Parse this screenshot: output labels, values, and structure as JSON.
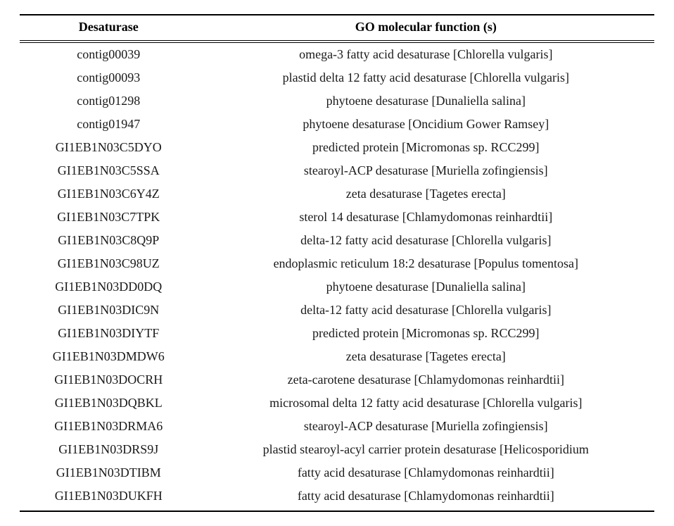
{
  "table": {
    "columns": [
      "Desaturase",
      "GO molecular function (s)"
    ],
    "header_fontsize": 19,
    "header_fontweight": "bold",
    "body_fontsize": 18,
    "font_family": "Times New Roman",
    "text_color": "#000000",
    "background_color": "#ffffff",
    "border_color": "#000000",
    "col_widths_pct": [
      28,
      72
    ],
    "align": [
      "center",
      "center"
    ],
    "rows": [
      [
        "contig00039",
        "omega-3 fatty acid desaturase [Chlorella vulgaris]"
      ],
      [
        "contig00093",
        "plastid delta 12 fatty acid desaturase [Chlorella vulgaris]"
      ],
      [
        "contig01298",
        "phytoene desaturase [Dunaliella salina]"
      ],
      [
        "contig01947",
        "phytoene desaturase [Oncidium Gower Ramsey]"
      ],
      [
        "GI1EB1N03C5DYO",
        "predicted protein [Micromonas sp. RCC299]"
      ],
      [
        "GI1EB1N03C5SSA",
        "stearoyl-ACP desaturase [Muriella zofingiensis]"
      ],
      [
        "GI1EB1N03C6Y4Z",
        "zeta desaturase [Tagetes erecta]"
      ],
      [
        "GI1EB1N03C7TPK",
        "sterol 14 desaturase [Chlamydomonas reinhardtii]"
      ],
      [
        "GI1EB1N03C8Q9P",
        "delta-12 fatty acid desaturase [Chlorella vulgaris]"
      ],
      [
        "GI1EB1N03C98UZ",
        "endoplasmic reticulum 18:2 desaturase [Populus tomentosa]"
      ],
      [
        "GI1EB1N03DD0DQ",
        "phytoene desaturase [Dunaliella salina]"
      ],
      [
        "GI1EB1N03DIC9N",
        "delta-12 fatty acid desaturase [Chlorella vulgaris]"
      ],
      [
        "GI1EB1N03DIYTF",
        "predicted protein [Micromonas sp. RCC299]"
      ],
      [
        "GI1EB1N03DMDW6",
        "zeta desaturase [Tagetes erecta]"
      ],
      [
        "GI1EB1N03DOCRH",
        "zeta-carotene desaturase [Chlamydomonas reinhardtii]"
      ],
      [
        "GI1EB1N03DQBKL",
        "microsomal delta 12 fatty acid desaturase [Chlorella vulgaris]"
      ],
      [
        "GI1EB1N03DRMA6",
        "stearoyl-ACP desaturase [Muriella zofingiensis]"
      ],
      [
        "GI1EB1N03DRS9J",
        "plastid stearoyl-acyl carrier protein desaturase [Helicosporidium"
      ],
      [
        "GI1EB1N03DTIBM",
        "fatty acid desaturase [Chlamydomonas reinhardtii]"
      ],
      [
        "GI1EB1N03DUKFH",
        "fatty acid desaturase [Chlamydomonas reinhardtii]"
      ]
    ]
  }
}
